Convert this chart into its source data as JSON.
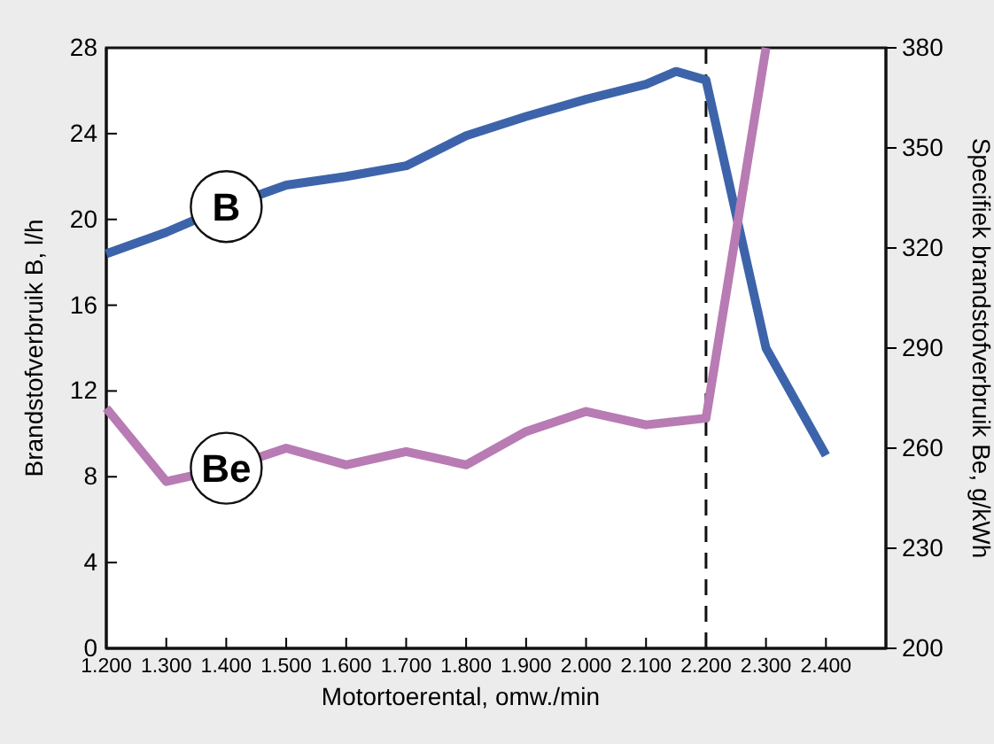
{
  "chart_data": {
    "type": "line",
    "xlabel": "Motortoerental, omw./min",
    "ylabel": "Brandstofverbruik B, l/h",
    "y2label": "Specifiek brandstofverbruik Be, g/kWh",
    "xlim": [
      1200,
      2500
    ],
    "xticks": [
      {
        "value": 1200,
        "label": "1.200"
      },
      {
        "value": 1300,
        "label": "1.300"
      },
      {
        "value": 1400,
        "label": "1.400"
      },
      {
        "value": 1500,
        "label": "1.500"
      },
      {
        "value": 1600,
        "label": "1.600"
      },
      {
        "value": 1700,
        "label": "1.700"
      },
      {
        "value": 1800,
        "label": "1.800"
      },
      {
        "value": 1900,
        "label": "1.900"
      },
      {
        "value": 2000,
        "label": "2.000"
      },
      {
        "value": 2100,
        "label": "2.100"
      },
      {
        "value": 2200,
        "label": "2.200"
      },
      {
        "value": 2300,
        "label": "2.300"
      },
      {
        "value": 2400,
        "label": "2.400"
      }
    ],
    "ylim": [
      0,
      28
    ],
    "yticks": [
      0,
      4,
      8,
      12,
      16,
      20,
      24,
      28
    ],
    "y2lim": [
      200,
      380
    ],
    "y2ticks": [
      200,
      230,
      260,
      290,
      320,
      350,
      380
    ],
    "series": [
      {
        "name": "B",
        "color": "#3d64aa",
        "x": [
          1200,
          1300,
          1400,
          1500,
          1600,
          1700,
          1800,
          1900,
          2000,
          2100,
          2150,
          2200,
          2300,
          2400
        ],
        "values": [
          18.4,
          19.4,
          20.6,
          21.6,
          22.0,
          22.5,
          23.9,
          24.8,
          25.6,
          26.3,
          26.9,
          26.5,
          14.0,
          9.0
        ]
      },
      {
        "name": "Be",
        "color": "#b87bb3",
        "axis": "y2",
        "x": [
          1200,
          1300,
          1400,
          1500,
          1600,
          1700,
          1800,
          1900,
          2000,
          2100,
          2200,
          2300
        ],
        "values": [
          272,
          250,
          254,
          260,
          255,
          259,
          255,
          265,
          271,
          267,
          269,
          380
        ]
      }
    ],
    "ref_lines": [
      {
        "axis": "x",
        "value": 2200,
        "line_style": "dashed",
        "color": "#111111"
      }
    ],
    "grid": false,
    "legend": false
  }
}
